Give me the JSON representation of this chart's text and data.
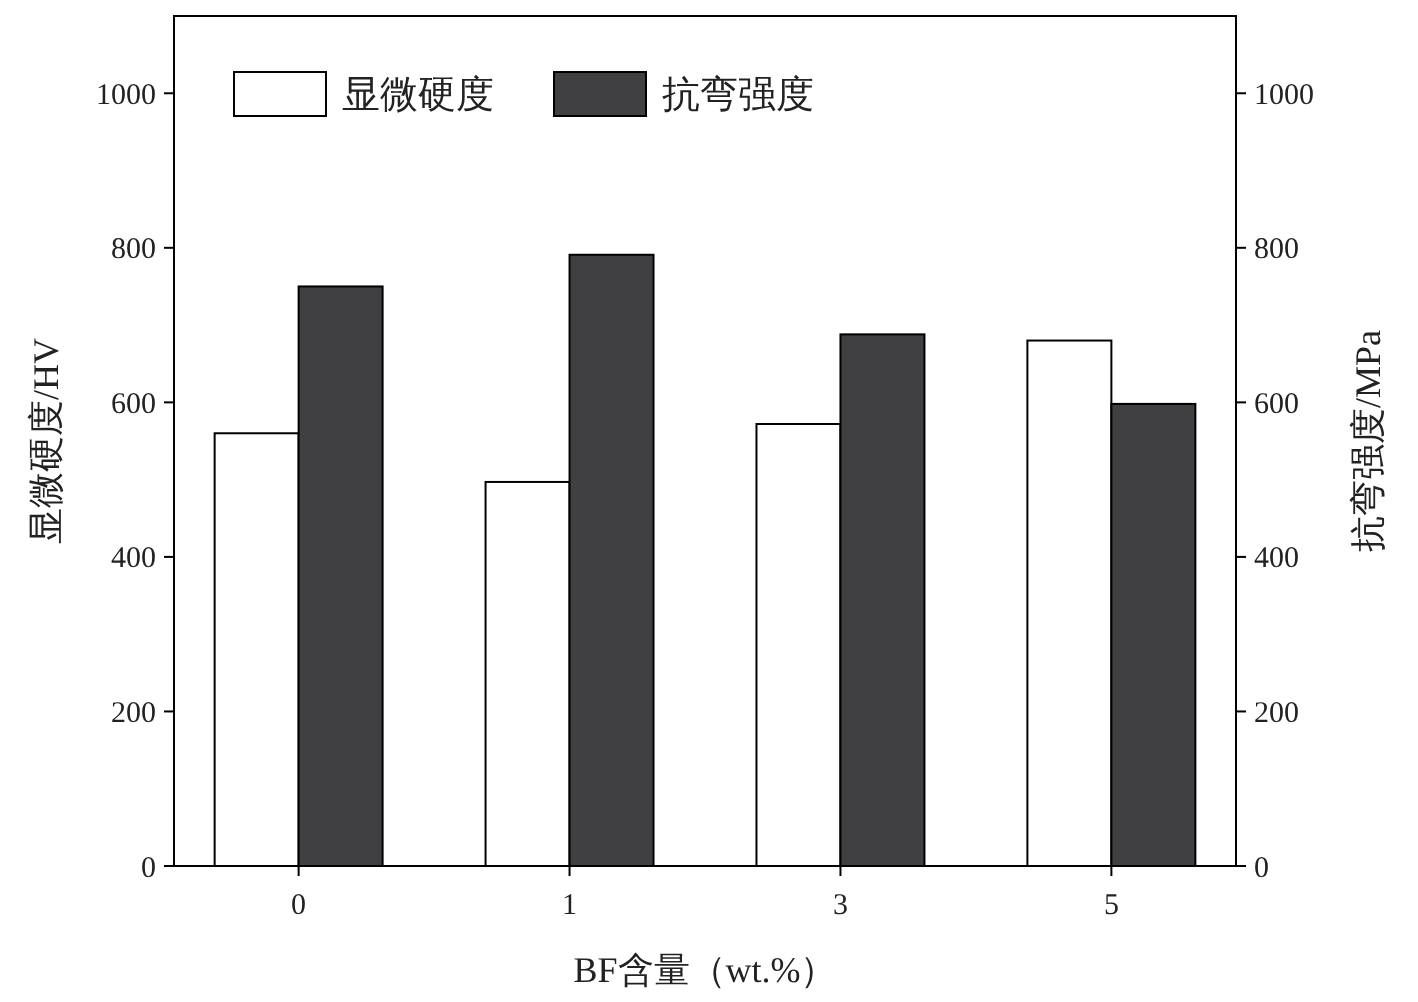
{
  "chart_data": {
    "type": "bar",
    "xlabel": "BF含量（wt.%）",
    "ylabel": "显微硬度/HV",
    "y2label": "抗弯强度/MPa",
    "categories": [
      "0",
      "1",
      "3",
      "5"
    ],
    "series": [
      {
        "name": "显微硬度",
        "color": "#ffffff",
        "values": [
          560,
          497,
          572,
          680
        ]
      },
      {
        "name": "抗弯强度",
        "color": "#404043",
        "values": [
          750,
          791,
          688,
          598
        ],
        "axis": "y2"
      }
    ],
    "ylim": [
      0,
      1100
    ],
    "yticks": [
      0,
      200,
      400,
      600,
      800,
      1000
    ],
    "y2lim": [
      0,
      1100
    ],
    "y2ticks": [
      0,
      200,
      400,
      600,
      800,
      1000
    ],
    "legend": "top left",
    "grid": false
  }
}
